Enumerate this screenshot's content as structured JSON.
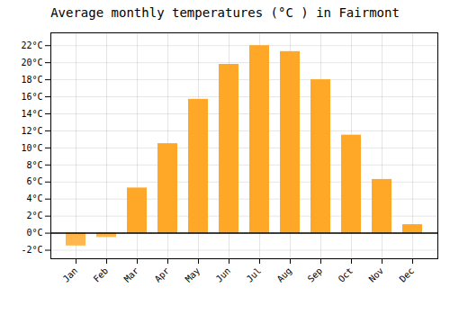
{
  "chart_data": {
    "type": "bar",
    "title": "Average monthly temperatures (°C ) in Fairmont",
    "categories": [
      "Jan",
      "Feb",
      "Mar",
      "Apr",
      "May",
      "Jun",
      "Jul",
      "Aug",
      "Sep",
      "Oct",
      "Nov",
      "Dec"
    ],
    "values": [
      -1.5,
      -0.5,
      5.3,
      10.5,
      15.7,
      19.8,
      22.0,
      21.3,
      18.0,
      11.5,
      6.3,
      1.0
    ],
    "colors": [
      "#FFB74D",
      "#FFB74D",
      "#FFA726",
      "#FFA726",
      "#FFA726",
      "#FFA726",
      "#FFA726",
      "#FFA726",
      "#FFA726",
      "#FFA726",
      "#FFA726",
      "#FFA726"
    ],
    "ylim": [
      -3,
      23.5
    ],
    "yticks": [
      {
        "value": -2,
        "label": "-2°C"
      },
      {
        "value": 0,
        "label": "0°C"
      },
      {
        "value": 2,
        "label": "2°C"
      },
      {
        "value": 4,
        "label": "4°C"
      },
      {
        "value": 6,
        "label": "6°C"
      },
      {
        "value": 8,
        "label": "8°C"
      },
      {
        "value": 10,
        "label": "10°C"
      },
      {
        "value": 12,
        "label": "12°C"
      },
      {
        "value": 14,
        "label": "14°C"
      },
      {
        "value": 16,
        "label": "16°C"
      },
      {
        "value": 18,
        "label": "18°C"
      },
      {
        "value": 20,
        "label": "20°C"
      },
      {
        "value": 22,
        "label": "22°C"
      }
    ],
    "grid": true
  }
}
